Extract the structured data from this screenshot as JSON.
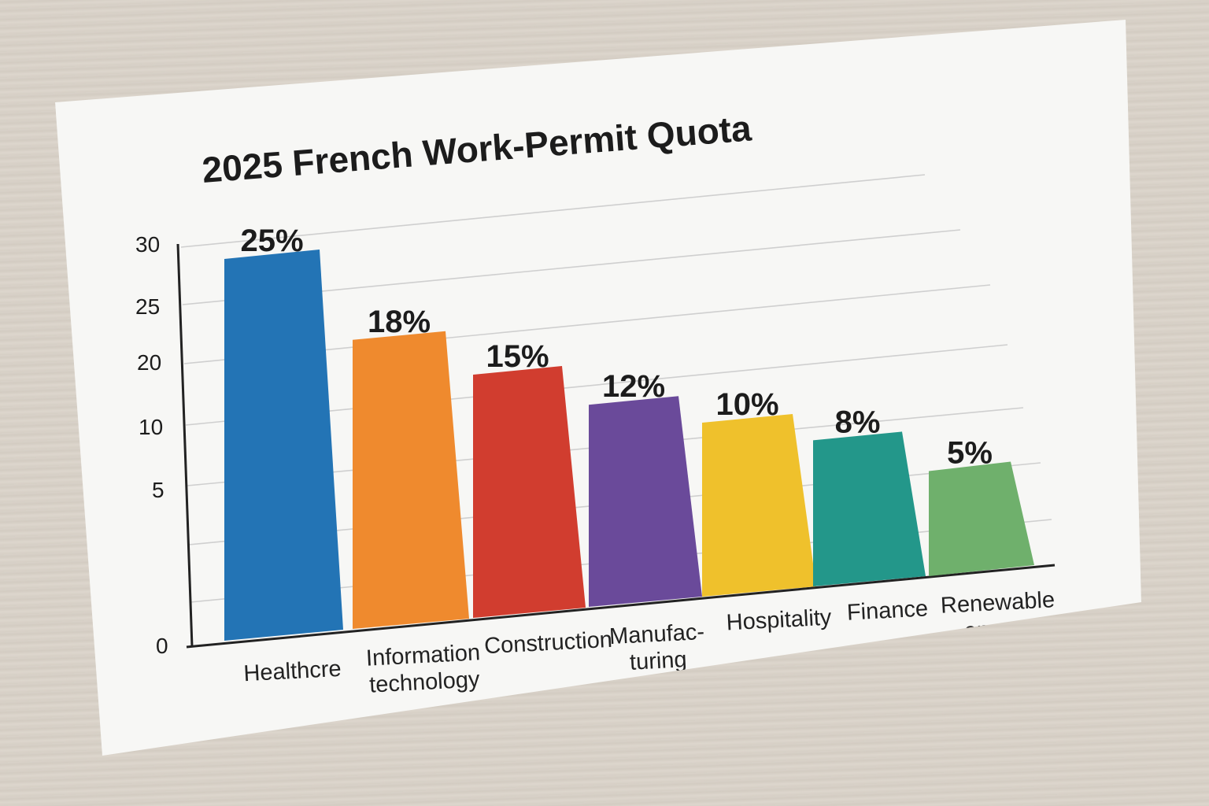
{
  "chart_data": {
    "type": "bar",
    "title": "2025 French Work-Permit Quota",
    "categories": [
      [
        "Healthcre"
      ],
      [
        "Information",
        "technology"
      ],
      [
        "Construction"
      ],
      [
        "Manufac-",
        "turing"
      ],
      [
        "Hospitality"
      ],
      [
        "Finance"
      ],
      [
        "Renewable",
        "energy"
      ]
    ],
    "values": [
      25,
      18,
      15,
      12,
      10,
      8,
      5
    ],
    "value_labels": [
      "25%",
      "18%",
      "15%",
      "12%",
      "10%",
      "8%",
      "5%"
    ],
    "y_ticks": [
      "0",
      "5",
      "10",
      "20",
      "25",
      "30"
    ],
    "ylim": [
      0,
      30
    ],
    "grid": true,
    "colors": [
      "#2374b5",
      "#ef8a2e",
      "#d13d2f",
      "#6a4a9a",
      "#efc12c",
      "#23978a",
      "#6fb06c"
    ]
  }
}
